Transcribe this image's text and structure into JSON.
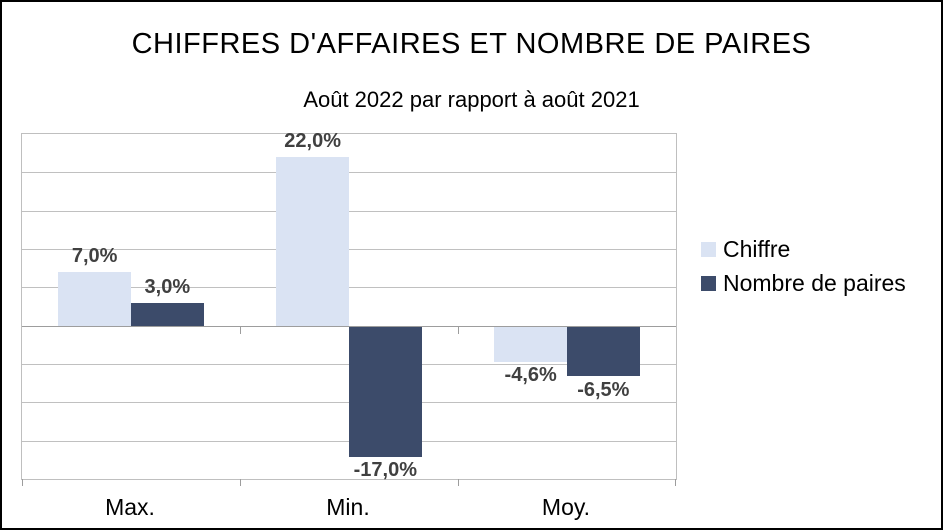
{
  "window": {
    "background": "#ffffff",
    "border_color": "#000000"
  },
  "chart_data": {
    "type": "bar",
    "title": "CHIFFRES D'AFFAIRES ET NOMBRE DE PAIRES",
    "subtitle": "Août 2022 par rapport à août 2021",
    "categories": [
      "Max.",
      "Min.",
      "Moy."
    ],
    "series": [
      {
        "name": "Chiffre",
        "color": "#dae3f3",
        "values": [
          7.0,
          22.0,
          -4.6
        ],
        "value_labels": [
          "7,0%",
          "22,0%",
          "-4,6%"
        ]
      },
      {
        "name": "Nombre de paires",
        "color": "#3c4b6a",
        "values": [
          3.0,
          -17.0,
          -6.5
        ],
        "value_labels": [
          "3,0%",
          "-17,0%",
          "-6,5%"
        ]
      }
    ],
    "ylim": [
      -20,
      25
    ],
    "grid_step": 5,
    "grid": true,
    "legend_position": "right",
    "value_label_color": "#404040",
    "gridline_color": "#c0c0c0",
    "zero_line_color": "#9d9d9d",
    "plot_border_color": "#bfbfbf"
  }
}
